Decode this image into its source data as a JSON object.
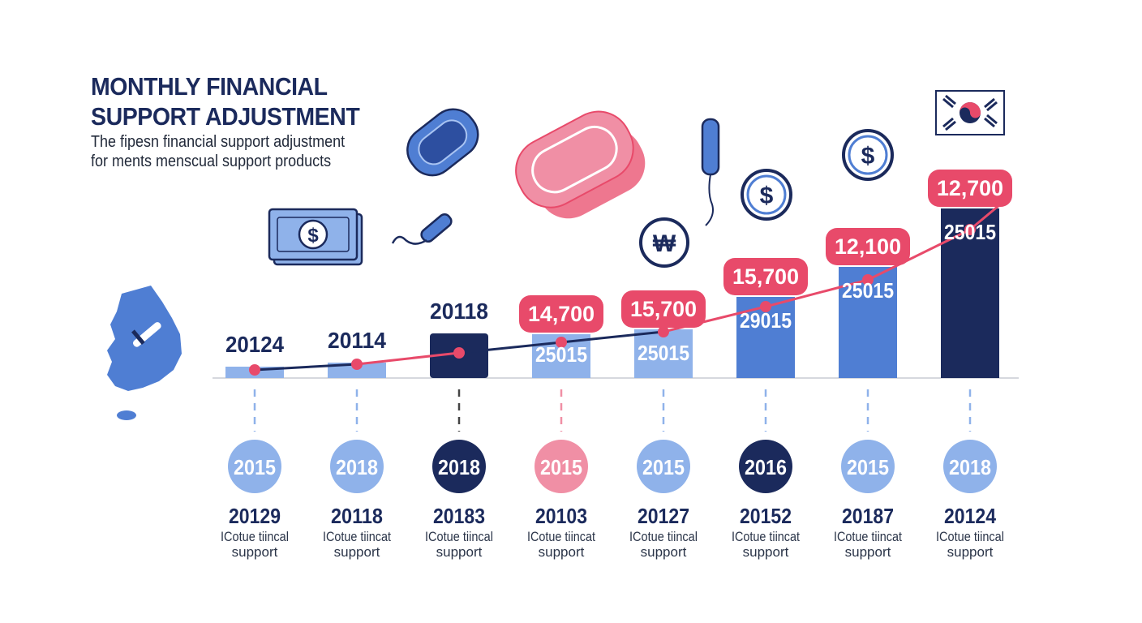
{
  "header": {
    "title_line1": "MONTHLY FINANCIAL",
    "title_line2": "SUPPORT ADJUSTMENT",
    "subtitle_line1": "The fipesn financial support adjustment",
    "subtitle_line2": "for ments menscual support products"
  },
  "icons": {
    "won_symbol": "₩",
    "dollar_symbol": "$"
  },
  "colors": {
    "navy": "#1b2a5c",
    "blue": "#4f7ed3",
    "light_blue": "#8fb2ea",
    "pink": "#e84a6a",
    "light_pink": "#f08fa5",
    "line_navy": "#1b2a5c",
    "line_pink": "#e84a6a"
  },
  "chart_data": {
    "type": "bar",
    "title": "MONTHLY FINANCIAL SUPPORT ADJUSTMENT",
    "ylim": [
      0,
      21000
    ],
    "bars": [
      {
        "top_label": "20124",
        "bar_label": "",
        "value": 1400,
        "color": "light_blue",
        "line_value": 1000,
        "circle_label": "2015",
        "circle_color": "light_blue",
        "bottom_value": "20129",
        "bottom_line1": "ICotue tiincal",
        "bottom_line2": "support"
      },
      {
        "top_label": "20114",
        "bar_label": "",
        "value": 1900,
        "color": "light_blue",
        "line_value": 1700,
        "circle_label": "2018",
        "circle_color": "light_blue",
        "bottom_value": "20118",
        "bottom_line1": "ICotue tiincat",
        "bottom_line2": "support"
      },
      {
        "top_label": "20118",
        "bar_label": "",
        "value": 5500,
        "color": "navy",
        "line_value": 3100,
        "circle_label": "2018",
        "circle_color": "navy",
        "bottom_value": "20183",
        "bottom_line1": "ICotue tiincal",
        "bottom_line2": "support"
      },
      {
        "top_label": "14,700",
        "bar_label": "25015",
        "value": 5400,
        "color": "light_blue",
        "line_value": 4400,
        "circle_label": "2015",
        "circle_color": "light_pink",
        "bottom_value": "20103",
        "bottom_line1": "ICotue tiincat",
        "bottom_line2": "support"
      },
      {
        "top_label": "15,700",
        "bar_label": "25015",
        "value": 6000,
        "color": "light_blue",
        "line_value": 5700,
        "circle_label": "2015",
        "circle_color": "light_blue",
        "bottom_value": "20127",
        "bottom_line1": "ICotue tiincal",
        "bottom_line2": "support"
      },
      {
        "top_label": "15,700",
        "bar_label": "29015",
        "value": 10000,
        "color": "blue",
        "line_value": 8800,
        "circle_label": "2016",
        "circle_color": "navy",
        "bottom_value": "20152",
        "bottom_line1": "ICotue tiincat",
        "bottom_line2": "support"
      },
      {
        "top_label": "12,100",
        "bar_label": "25015",
        "value": 13700,
        "color": "blue",
        "line_value": 12100,
        "circle_label": "2015",
        "circle_color": "light_blue",
        "bottom_value": "20187",
        "bottom_line1": "ICotue tiincat",
        "bottom_line2": "support"
      },
      {
        "top_label": "12,700",
        "bar_label": "25015",
        "value": 20900,
        "color": "navy",
        "line_value": 18300,
        "circle_label": "2018",
        "circle_color": "light_blue",
        "bottom_value": "20124",
        "bottom_line1": "ICotue tiincal",
        "bottom_line2": "support"
      }
    ]
  }
}
